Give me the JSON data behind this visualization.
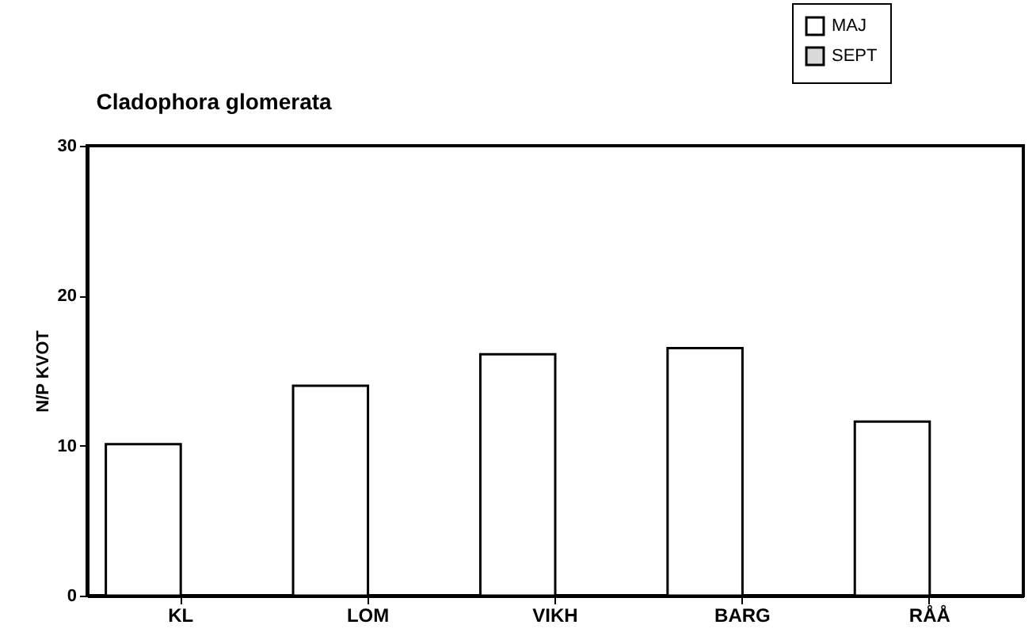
{
  "chart_data": {
    "type": "bar",
    "title": "Cladophora  glomerata",
    "ylabel": "N/P KVOT",
    "categories": [
      "KL",
      "LOM",
      "VIKH",
      "BARG",
      "RÅÅ"
    ],
    "series": [
      {
        "name": "MAJ",
        "color": "#ffffff",
        "values": [
          10.1,
          14.0,
          16.1,
          16.5,
          11.6
        ]
      },
      {
        "name": "SEPT",
        "color": "#d9d9d9",
        "values": [
          null,
          null,
          null,
          null,
          null
        ]
      }
    ],
    "ylim": [
      0,
      30
    ],
    "yticks": [
      0,
      10,
      20,
      30
    ],
    "grid": false,
    "legend": "top right"
  }
}
